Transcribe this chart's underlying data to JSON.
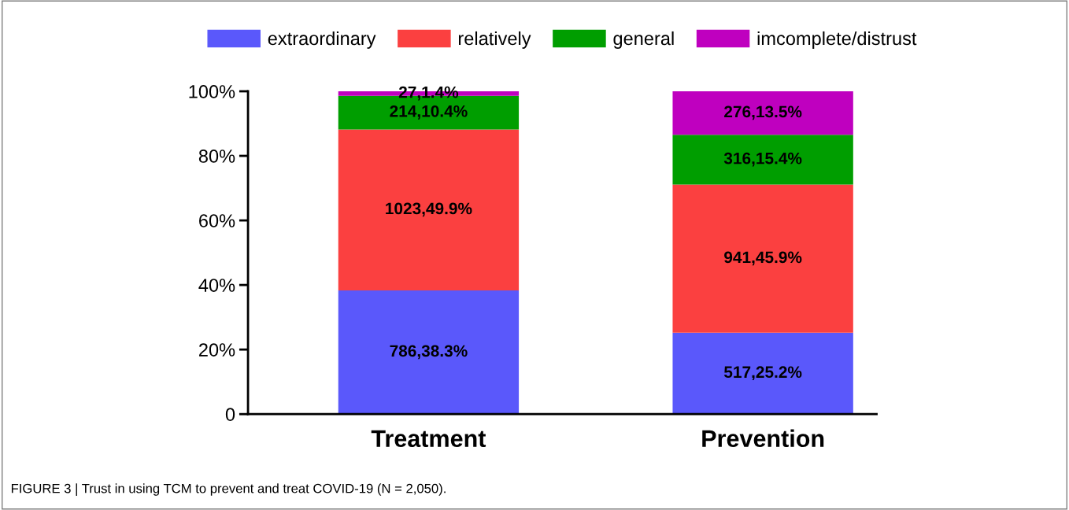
{
  "chart_data": {
    "type": "bar",
    "stacked": true,
    "categories": [
      "Treatment",
      "Prevention"
    ],
    "series": [
      {
        "name": "extraordinary",
        "color": "#5a58fb",
        "values": [
          38.3,
          25.2
        ],
        "value_labels": [
          "786,38.3%",
          "517,25.2%"
        ]
      },
      {
        "name": "relatively",
        "color": "#fb4040",
        "values": [
          49.9,
          45.9
        ],
        "value_labels": [
          "1023,49.9%",
          "941,45.9%"
        ]
      },
      {
        "name": "general",
        "color": "#009e00",
        "values": [
          10.4,
          15.4
        ],
        "value_labels": [
          "214,10.4%",
          "316,15.4%"
        ]
      },
      {
        "name": "imcomplete/distrust",
        "color": "#bf00bf",
        "values": [
          1.4,
          13.5
        ],
        "value_labels": [
          "27,1.4%",
          "276,13.5%"
        ]
      }
    ],
    "ylim": [
      0,
      100
    ],
    "yticks": [
      {
        "value": 0,
        "label": "0"
      },
      {
        "value": 20,
        "label": "20%"
      },
      {
        "value": 40,
        "label": "40%"
      },
      {
        "value": 60,
        "label": "60%"
      },
      {
        "value": 80,
        "label": "80%"
      },
      {
        "value": 100,
        "label": "100%"
      }
    ],
    "legend": "top",
    "grid": false,
    "annotations": [
      "FIGURE 3 | Trust in using TCM to prevent and treat COVID-19 (N = 2,050)."
    ]
  }
}
